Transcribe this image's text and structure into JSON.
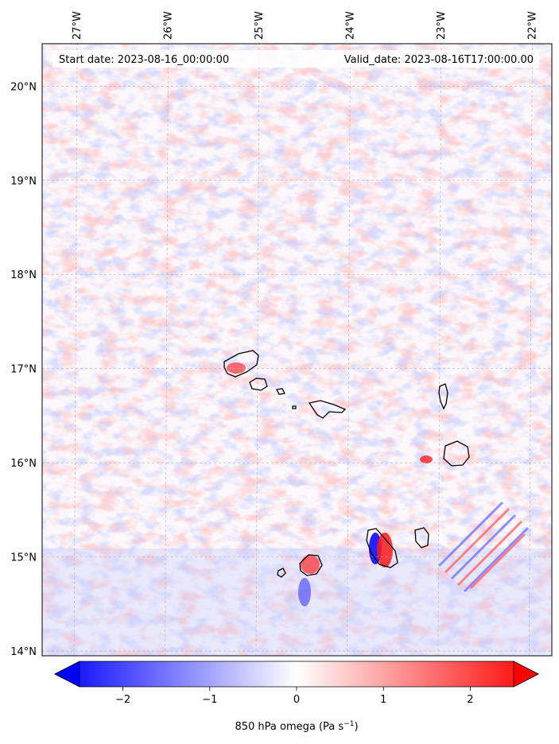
{
  "map": {
    "start_label": "Start date: 2023-08-16_00:00:00",
    "valid_label": "Valid_date: 2023-08-16T17:00:00.00",
    "lon_ticks": [
      "27°W",
      "26°W",
      "25°W",
      "24°W",
      "23°W",
      "22°W"
    ],
    "lat_ticks": [
      "20°N",
      "19°N",
      "18°N",
      "17°N",
      "16°N",
      "15°N",
      "14°N"
    ],
    "lon_values": [
      -27,
      -26,
      -25,
      -24,
      -23,
      -22
    ],
    "lat_values": [
      20,
      19,
      18,
      17,
      16,
      15,
      14
    ],
    "extent": {
      "lon_min": -27.35,
      "lon_max": -21.75,
      "lat_min": 13.95,
      "lat_max": 20.45
    }
  },
  "colorbar": {
    "label": "850 hPa omega (Pa s",
    "label_sup": "−1",
    "label_close": ")",
    "tick_labels": [
      "−2",
      "−1",
      "0",
      "1",
      "2"
    ],
    "tick_values": [
      -2,
      -1,
      0,
      1,
      2
    ],
    "range": [
      -2.5,
      2.5
    ],
    "colormap": "bwr",
    "color_low": "#0000ff",
    "color_mid": "#ffffff",
    "color_high": "#ff0000"
  }
}
